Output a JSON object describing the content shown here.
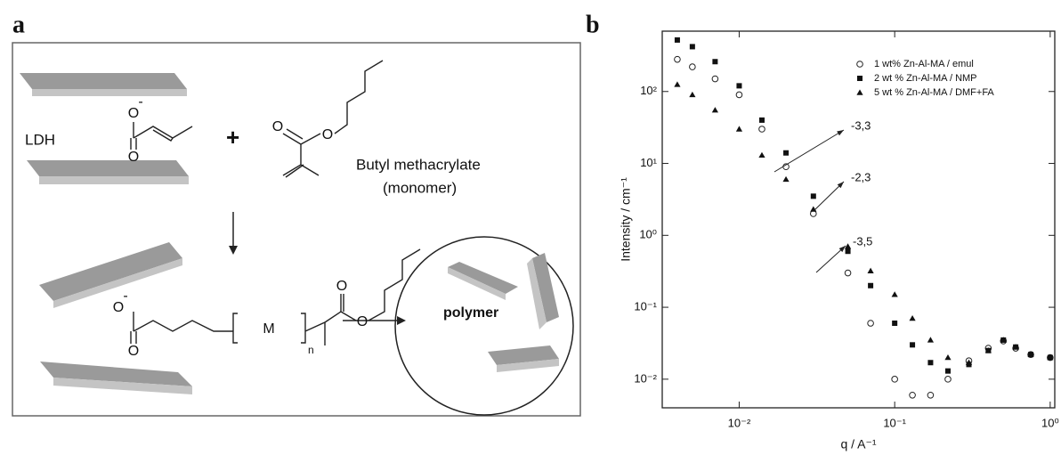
{
  "panel_labels": [
    "a",
    "b"
  ],
  "diagram": {
    "ldh": "LDH",
    "plus": "+",
    "monomer_name": "Butyl methacrylate",
    "monomer_note": "(monomer)",
    "unit": "M",
    "repeat": "n",
    "polymer": "polymer",
    "oxygen": "O",
    "charge": "-"
  },
  "chart_data": {
    "type": "scatter",
    "x_label": "q / A⁻¹",
    "y_label": "Intensity / cm⁻¹",
    "x": [
      0.004,
      0.005,
      0.007,
      0.01,
      0.014,
      0.02,
      0.03,
      0.05,
      0.07,
      0.1,
      0.13,
      0.17,
      0.22,
      0.3,
      0.4,
      0.5,
      0.6,
      0.75,
      1.0
    ],
    "series": [
      {
        "name": "1 wt% Zn-Al-MA / emul",
        "color": "#222222",
        "marker": "circle-open",
        "values": [
          280,
          220,
          150,
          90,
          30,
          9,
          2,
          0.3,
          0.06,
          0.01,
          0.006,
          0.006,
          0.01,
          0.018,
          0.027,
          0.034,
          0.027,
          0.022,
          0.02
        ]
      },
      {
        "name": "2 wt % Zn-Al-MA / NMP",
        "color": "#111111",
        "marker": "square",
        "values": [
          520,
          420,
          260,
          120,
          40,
          14,
          3.5,
          0.6,
          0.2,
          0.06,
          0.03,
          0.017,
          0.013,
          0.016,
          0.025,
          0.035,
          0.028,
          0.022,
          0.02
        ]
      },
      {
        "name": "5 wt % Zn-Al-MA / DMF+FA",
        "color": "#111111",
        "marker": "triangle",
        "values": [
          125,
          90,
          55,
          30,
          13,
          6,
          2.3,
          0.7,
          0.32,
          0.15,
          0.07,
          0.035,
          0.02,
          0.017,
          0.025,
          0.035,
          0.028,
          0.022,
          0.02
        ]
      }
    ],
    "xlog": true,
    "ylog": true,
    "xlim": [
      0.0032,
      1.07
    ],
    "ylim": [
      0.004,
      690
    ],
    "xticks": [
      {
        "value": 0.01,
        "label": "10⁻²"
      },
      {
        "value": 0.1,
        "label": "10⁻¹"
      },
      {
        "value": 1,
        "label": "10⁰"
      }
    ],
    "yticks": [
      {
        "value": 0.01,
        "label": "10⁻²"
      },
      {
        "value": 0.1,
        "label": "10⁻¹"
      },
      {
        "value": 1,
        "label": "10⁰"
      },
      {
        "value": 10,
        "label": "10¹"
      },
      {
        "value": 100,
        "label": "10²"
      }
    ],
    "annotations": [
      "-3,3",
      "-2,3",
      "-3,5"
    ],
    "legend": "upper right",
    "grid": false
  }
}
